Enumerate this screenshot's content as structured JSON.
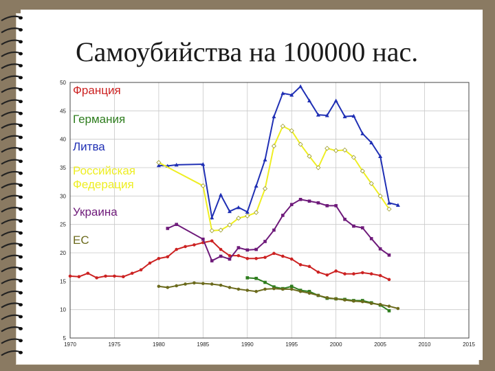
{
  "slide": {
    "title": "Самоубийства на 100000 нас."
  },
  "colors": {
    "background": "#8a7a62",
    "slide": "#ffffff"
  },
  "chart_data": {
    "type": "line",
    "title": "Самоубийства на 100000 нас.",
    "xlabel": "",
    "ylabel": "",
    "xlim": [
      1970,
      2015
    ],
    "ylim": [
      5,
      50
    ],
    "x_ticks": [
      "1970",
      "1975",
      "1980",
      "1985",
      "1990",
      "1995",
      "2000",
      "2005",
      "2010",
      "2015"
    ],
    "y_ticks": [
      "5",
      "10",
      "15",
      "20",
      "25",
      "30",
      "35",
      "40",
      "45",
      "50"
    ],
    "grid": true,
    "legend_position": "left",
    "series": [
      {
        "name": "Франция",
        "color": "#cc2222",
        "marker": "circle",
        "points": [
          [
            1970,
            15.9
          ],
          [
            1971,
            15.8
          ],
          [
            1972,
            16.4
          ],
          [
            1973,
            15.6
          ],
          [
            1974,
            15.9
          ],
          [
            1975,
            15.9
          ],
          [
            1976,
            15.8
          ],
          [
            1977,
            16.4
          ],
          [
            1978,
            17.0
          ],
          [
            1979,
            18.2
          ],
          [
            1980,
            19.0
          ],
          [
            1981,
            19.3
          ],
          [
            1982,
            20.6
          ],
          [
            1983,
            21.1
          ],
          [
            1984,
            21.4
          ],
          [
            1985,
            21.8
          ],
          [
            1986,
            22.1
          ],
          [
            1987,
            20.6
          ],
          [
            1988,
            19.5
          ],
          [
            1989,
            19.5
          ],
          [
            1990,
            19.0
          ],
          [
            1991,
            19.0
          ],
          [
            1992,
            19.2
          ],
          [
            1993,
            19.9
          ],
          [
            1994,
            19.4
          ],
          [
            1995,
            18.9
          ],
          [
            1996,
            17.9
          ],
          [
            1997,
            17.6
          ],
          [
            1998,
            16.6
          ],
          [
            1999,
            16.1
          ],
          [
            2000,
            16.8
          ],
          [
            2001,
            16.3
          ],
          [
            2002,
            16.3
          ],
          [
            2003,
            16.5
          ],
          [
            2004,
            16.3
          ],
          [
            2005,
            16.0
          ],
          [
            2006,
            15.3
          ]
        ]
      },
      {
        "name": "Германия",
        "color": "#2e7d1e",
        "marker": "square",
        "points": [
          [
            1990,
            15.6
          ],
          [
            1991,
            15.5
          ],
          [
            1992,
            14.8
          ],
          [
            1993,
            14.0
          ],
          [
            1994,
            13.7
          ],
          [
            1995,
            14.1
          ],
          [
            1996,
            13.4
          ],
          [
            1997,
            13.2
          ],
          [
            1998,
            12.5
          ],
          [
            1999,
            12.0
          ],
          [
            2000,
            11.9
          ],
          [
            2001,
            11.8
          ],
          [
            2002,
            11.6
          ],
          [
            2003,
            11.6
          ],
          [
            2004,
            11.2
          ],
          [
            2005,
            10.8
          ],
          [
            2006,
            9.8
          ]
        ]
      },
      {
        "name": "Литва",
        "color": "#1f2fb4",
        "marker": "triangle",
        "points": [
          [
            1980,
            35.4
          ],
          [
            1981,
            35.3
          ],
          [
            1982,
            35.5
          ],
          [
            1985,
            35.6
          ],
          [
            1986,
            26.2
          ],
          [
            1987,
            30.2
          ],
          [
            1988,
            27.3
          ],
          [
            1989,
            28.0
          ],
          [
            1990,
            27.2
          ],
          [
            1991,
            31.8
          ],
          [
            1992,
            36.4
          ],
          [
            1993,
            44.0
          ],
          [
            1994,
            48.1
          ],
          [
            1995,
            47.8
          ],
          [
            1996,
            49.3
          ],
          [
            1997,
            46.8
          ],
          [
            1998,
            44.3
          ],
          [
            1999,
            44.2
          ],
          [
            2000,
            46.8
          ],
          [
            2001,
            44.0
          ],
          [
            2002,
            44.1
          ],
          [
            2003,
            41.0
          ],
          [
            2004,
            39.4
          ],
          [
            2005,
            37.0
          ],
          [
            2006,
            28.8
          ],
          [
            2007,
            28.4
          ]
        ]
      },
      {
        "name": "Российская Федерация",
        "color": "#eeee22",
        "marker": "diamond",
        "points": [
          [
            1980,
            35.9
          ],
          [
            1985,
            31.8
          ],
          [
            1986,
            23.9
          ],
          [
            1987,
            24.0
          ],
          [
            1988,
            24.9
          ],
          [
            1989,
            26.1
          ],
          [
            1990,
            26.5
          ],
          [
            1991,
            27.1
          ],
          [
            1992,
            31.3
          ],
          [
            1993,
            38.8
          ],
          [
            1994,
            42.3
          ],
          [
            1995,
            41.5
          ],
          [
            1996,
            39.1
          ],
          [
            1997,
            37.0
          ],
          [
            1998,
            35.0
          ],
          [
            1999,
            38.4
          ],
          [
            2000,
            38.0
          ],
          [
            2001,
            38.1
          ],
          [
            2002,
            36.8
          ],
          [
            2003,
            34.4
          ],
          [
            2004,
            32.2
          ],
          [
            2005,
            30.0
          ],
          [
            2006,
            27.7
          ]
        ]
      },
      {
        "name": "Украина",
        "color": "#6e1a7a",
        "marker": "square",
        "points": [
          [
            1981,
            24.3
          ],
          [
            1982,
            25.0
          ],
          [
            1985,
            22.4
          ],
          [
            1986,
            18.6
          ],
          [
            1987,
            19.4
          ],
          [
            1988,
            18.9
          ],
          [
            1989,
            20.9
          ],
          [
            1990,
            20.5
          ],
          [
            1991,
            20.6
          ],
          [
            1992,
            22.0
          ],
          [
            1993,
            24.0
          ],
          [
            1994,
            26.6
          ],
          [
            1995,
            28.5
          ],
          [
            1996,
            29.4
          ],
          [
            1997,
            29.1
          ],
          [
            1998,
            28.8
          ],
          [
            1999,
            28.3
          ],
          [
            2000,
            28.3
          ],
          [
            2001,
            25.9
          ],
          [
            2002,
            24.7
          ],
          [
            2003,
            24.4
          ],
          [
            2004,
            22.5
          ],
          [
            2005,
            20.7
          ],
          [
            2006,
            19.6
          ]
        ]
      },
      {
        "name": "ЕС",
        "color": "#6b6a1c",
        "marker": "circle",
        "points": [
          [
            1980,
            14.1
          ],
          [
            1981,
            13.9
          ],
          [
            1982,
            14.2
          ],
          [
            1983,
            14.5
          ],
          [
            1984,
            14.7
          ],
          [
            1985,
            14.6
          ],
          [
            1986,
            14.5
          ],
          [
            1987,
            14.3
          ],
          [
            1988,
            13.9
          ],
          [
            1989,
            13.6
          ],
          [
            1990,
            13.4
          ],
          [
            1991,
            13.2
          ],
          [
            1992,
            13.6
          ],
          [
            1993,
            13.7
          ],
          [
            1994,
            13.6
          ],
          [
            1995,
            13.6
          ],
          [
            1996,
            13.2
          ],
          [
            1997,
            12.9
          ],
          [
            1998,
            12.5
          ],
          [
            1999,
            12.1
          ],
          [
            2000,
            11.9
          ],
          [
            2001,
            11.7
          ],
          [
            2002,
            11.5
          ],
          [
            2003,
            11.4
          ],
          [
            2004,
            11.1
          ],
          [
            2005,
            10.9
          ],
          [
            2006,
            10.6
          ],
          [
            2007,
            10.2
          ]
        ]
      }
    ]
  }
}
